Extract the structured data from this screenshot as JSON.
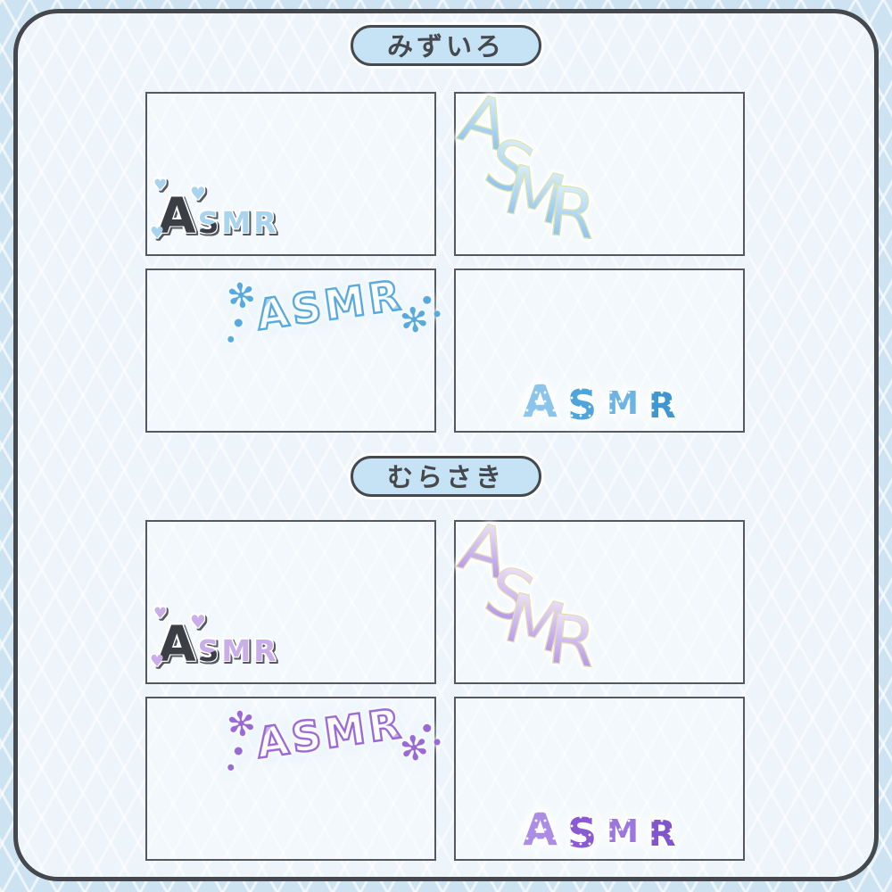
{
  "colors": {
    "page_bg": "#cde3f1",
    "board_bg": "#eef5fa",
    "panel_bg": "#f2f8fc",
    "border": "#45484d",
    "pill_bg": "#c6e3f5",
    "pill_text": "#45484d"
  },
  "sections": [
    {
      "label": "みずいろ",
      "palette": {
        "light": "#a9d4f0",
        "dark": "#3b3e44",
        "grad_top": "#d9edfa",
        "grad_bottom": "#8cc1ec",
        "edge": "#dde6a9",
        "stroke": "#57a9de",
        "block1": "#8cc5ec",
        "block2": "#4fa5db",
        "block3": "#6db4e4",
        "block4": "#3f97d2"
      },
      "panels": [
        {
          "style": "hearts",
          "letters": [
            "A",
            "S",
            "M",
            "R"
          ],
          "heart_glyph": "♥"
        },
        {
          "style": "diagonal-gradient",
          "letters": [
            "A",
            "S",
            "M",
            "R"
          ]
        },
        {
          "style": "outline-snowflakes",
          "letters": [
            "A",
            "S",
            "M",
            "R"
          ],
          "snowflake_glyph": "✻"
        },
        {
          "style": "block-dotted",
          "letters": [
            "A",
            "S",
            "M",
            "R"
          ]
        }
      ]
    },
    {
      "label": "むらさき",
      "palette": {
        "light": "#c9aeea",
        "dark": "#3b3e44",
        "grad_top": "#eae0fb",
        "grad_bottom": "#b295e5",
        "edge": "#e6ddae",
        "stroke": "#9a6ad4",
        "block1": "#ab8de5",
        "block2": "#8a5ad3",
        "block3": "#9b78df",
        "block4": "#7f56cd"
      },
      "panels": [
        {
          "style": "hearts",
          "letters": [
            "A",
            "S",
            "M",
            "R"
          ],
          "heart_glyph": "♥"
        },
        {
          "style": "diagonal-gradient",
          "letters": [
            "A",
            "S",
            "M",
            "R"
          ]
        },
        {
          "style": "outline-snowflakes",
          "letters": [
            "A",
            "S",
            "M",
            "R"
          ],
          "snowflake_glyph": "✻"
        },
        {
          "style": "block-dotted",
          "letters": [
            "A",
            "S",
            "M",
            "R"
          ]
        }
      ]
    }
  ]
}
